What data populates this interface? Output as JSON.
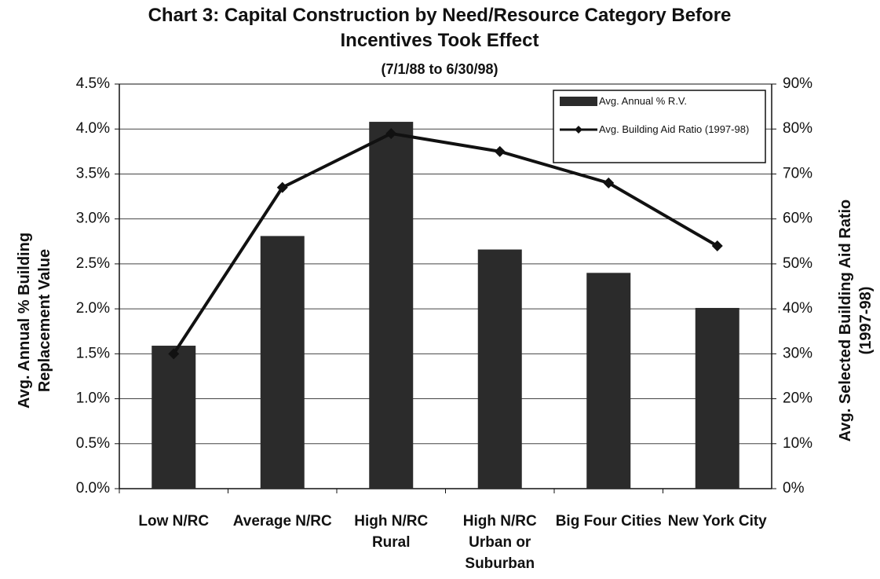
{
  "chart_data": {
    "type": "bar",
    "title": "Chart 3:  Capital Construction by Need/Resource Category Before Incentives Took Effect",
    "subtitle": "(7/1/88 to 6/30/98)",
    "y_label": "Avg. Annual % Building Replacement Value",
    "y2_label": "Avg. Selected Building Aid Ratio (1997-98)",
    "categories": [
      "Low N/RC",
      "Average N/RC",
      "High N/RC Rural",
      "High N/RC Urban or Suburban",
      "Big Four Cities",
      "New York City"
    ],
    "series": [
      {
        "name": "Avg. Annual % R.V.",
        "type": "bar",
        "color": "#2b2b2b",
        "values": [
          1.59,
          2.81,
          4.08,
          2.66,
          2.4,
          2.01
        ]
      },
      {
        "name": "Avg. Building Aid Ratio (1997-98)",
        "type": "line",
        "axis": "y2",
        "color": "#111111",
        "values": [
          30,
          67,
          79,
          75,
          68,
          54
        ]
      }
    ],
    "ylim": [
      0,
      4.5
    ],
    "yticks": [
      {
        "value": 0,
        "label": "0.0%"
      },
      {
        "value": 0.5,
        "label": "0.5%"
      },
      {
        "value": 1,
        "label": "1.0%"
      },
      {
        "value": 1.5,
        "label": "1.5%"
      },
      {
        "value": 2,
        "label": "2.0%"
      },
      {
        "value": 2.5,
        "label": "2.5%"
      },
      {
        "value": 3,
        "label": "3.0%"
      },
      {
        "value": 3.5,
        "label": "3.5%"
      },
      {
        "value": 4,
        "label": "4.0%"
      },
      {
        "value": 4.5,
        "label": "4.5%"
      }
    ],
    "y2lim": [
      0,
      90
    ],
    "y2ticks": [
      {
        "value": 0,
        "label": "0%"
      },
      {
        "value": 10,
        "label": "10%"
      },
      {
        "value": 20,
        "label": "20%"
      },
      {
        "value": 30,
        "label": "30%"
      },
      {
        "value": 40,
        "label": "40%"
      },
      {
        "value": 50,
        "label": "50%"
      },
      {
        "value": 60,
        "label": "60%"
      },
      {
        "value": 70,
        "label": "70%"
      },
      {
        "value": 80,
        "label": "80%"
      },
      {
        "value": 90,
        "label": "90%"
      }
    ],
    "grid": true,
    "legend": "upper right"
  }
}
